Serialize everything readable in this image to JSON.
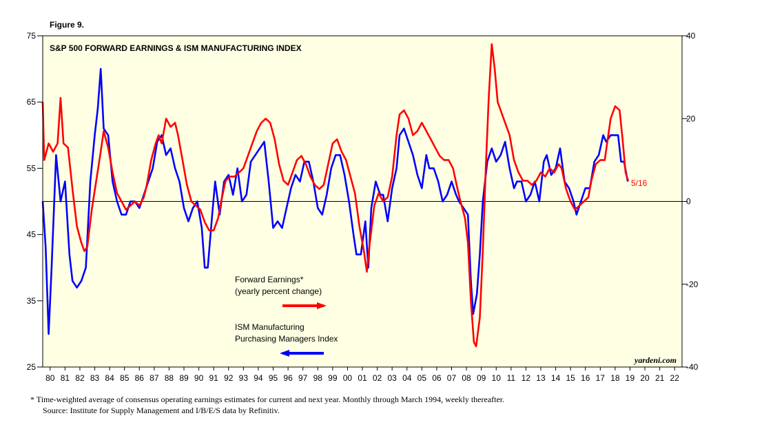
{
  "chart_data": {
    "type": "line",
    "header": "Figure 9.",
    "title": "S&P 500 FORWARD EARNINGS & ISM MANUFACTURING INDEX",
    "source_credit": "yardeni.com",
    "annotation": "5/16",
    "footnotes": [
      "*  Time-weighted average of consensus operating earnings estimates for current and next year. Monthly through March 1994, weekly thereafter.",
      "Source: Institute for Supply Management and I/B/E/S data by Refinitiv."
    ],
    "xlim": [
      1980,
      2023
    ],
    "ylim": [
      25,
      75
    ],
    "yticks": [
      25,
      35,
      45,
      55,
      65,
      75
    ],
    "y2lim": [
      -40,
      40
    ],
    "y2ticks": [
      -40,
      -20,
      0,
      20,
      40
    ],
    "reference_line": {
      "axis": "y2",
      "value": 0
    },
    "xticks": [
      {
        "value": 1980.5,
        "label": "80"
      },
      {
        "value": 1981.5,
        "label": "81"
      },
      {
        "value": 1982.5,
        "label": "82"
      },
      {
        "value": 1983.5,
        "label": "83"
      },
      {
        "value": 1984.5,
        "label": "84"
      },
      {
        "value": 1985.5,
        "label": "85"
      },
      {
        "value": 1986.5,
        "label": "86"
      },
      {
        "value": 1987.5,
        "label": "87"
      },
      {
        "value": 1988.5,
        "label": "88"
      },
      {
        "value": 1989.5,
        "label": "89"
      },
      {
        "value": 1990.5,
        "label": "90"
      },
      {
        "value": 1991.5,
        "label": "91"
      },
      {
        "value": 1992.5,
        "label": "92"
      },
      {
        "value": 1993.5,
        "label": "93"
      },
      {
        "value": 1994.5,
        "label": "94"
      },
      {
        "value": 1995.5,
        "label": "95"
      },
      {
        "value": 1996.5,
        "label": "96"
      },
      {
        "value": 1997.5,
        "label": "97"
      },
      {
        "value": 1998.5,
        "label": "98"
      },
      {
        "value": 1999.5,
        "label": "99"
      },
      {
        "value": 2000.5,
        "label": "00"
      },
      {
        "value": 2001.5,
        "label": "01"
      },
      {
        "value": 2002.5,
        "label": "02"
      },
      {
        "value": 2003.5,
        "label": "03"
      },
      {
        "value": 2004.5,
        "label": "04"
      },
      {
        "value": 2005.5,
        "label": "05"
      },
      {
        "value": 2006.5,
        "label": "06"
      },
      {
        "value": 2007.5,
        "label": "07"
      },
      {
        "value": 2008.5,
        "label": "08"
      },
      {
        "value": 2009.5,
        "label": "09"
      },
      {
        "value": 2010.5,
        "label": "10"
      },
      {
        "value": 2011.5,
        "label": "11"
      },
      {
        "value": 2012.5,
        "label": "12"
      },
      {
        "value": 2013.5,
        "label": "13"
      },
      {
        "value": 2014.5,
        "label": "14"
      },
      {
        "value": 2015.5,
        "label": "15"
      },
      {
        "value": 2016.5,
        "label": "16"
      },
      {
        "value": 2017.5,
        "label": "17"
      },
      {
        "value": 2018.5,
        "label": "18"
      },
      {
        "value": 2019.5,
        "label": "19"
      },
      {
        "value": 2020.5,
        "label": "20"
      },
      {
        "value": 2021.5,
        "label": "21"
      },
      {
        "value": 2022.5,
        "label": "22"
      }
    ],
    "series": [
      {
        "name": [
          "Forward Earnings*",
          "(yearly percent change)"
        ],
        "color": "#ff0000",
        "axis": "y2",
        "x": [
          1980.0,
          1980.1,
          1980.4,
          1980.7,
          1981.0,
          1981.2,
          1981.4,
          1981.7,
          1982.0,
          1982.3,
          1982.6,
          1982.8,
          1983.0,
          1983.3,
          1983.6,
          1983.9,
          1984.1,
          1984.4,
          1984.7,
          1985.0,
          1985.3,
          1985.6,
          1985.9,
          1986.2,
          1986.5,
          1986.8,
          1987.0,
          1987.3,
          1987.6,
          1987.8,
          1988.0,
          1988.3,
          1988.6,
          1988.9,
          1989.1,
          1989.4,
          1989.7,
          1990.0,
          1990.3,
          1990.6,
          1990.9,
          1991.2,
          1991.5,
          1991.8,
          1992.0,
          1992.3,
          1992.6,
          1992.9,
          1993.2,
          1993.5,
          1993.8,
          1994.1,
          1994.4,
          1994.7,
          1995.0,
          1995.3,
          1995.6,
          1995.9,
          1996.2,
          1996.5,
          1996.8,
          1997.1,
          1997.4,
          1997.7,
          1998.0,
          1998.3,
          1998.6,
          1998.9,
          1999.2,
          1999.5,
          1999.8,
          2000.1,
          2000.4,
          2000.7,
          2001.0,
          2001.3,
          2001.6,
          2001.8,
          2002.0,
          2002.3,
          2002.6,
          2002.9,
          2003.2,
          2003.5,
          2003.8,
          2004.0,
          2004.3,
          2004.6,
          2004.9,
          2005.2,
          2005.5,
          2005.8,
          2006.1,
          2006.4,
          2006.7,
          2007.0,
          2007.3,
          2007.6,
          2007.9,
          2008.1,
          2008.4,
          2008.6,
          2008.8,
          2009.0,
          2009.15,
          2009.4,
          2009.6,
          2009.8,
          2010.0,
          2010.2,
          2010.4,
          2010.6,
          2010.8,
          2011.1,
          2011.4,
          2011.7,
          2012.0,
          2012.3,
          2012.6,
          2012.9,
          2013.2,
          2013.5,
          2013.8,
          2014.1,
          2014.4,
          2014.7,
          2014.9,
          2015.2,
          2015.5,
          2015.8,
          2016.1,
          2016.4,
          2016.7,
          2016.9,
          2017.2,
          2017.5,
          2017.8,
          2018.0,
          2018.2,
          2018.5,
          2018.8,
          2019.0,
          2019.2,
          2019.38
        ],
        "values": [
          24,
          10,
          14,
          12,
          14,
          25,
          14,
          13,
          3,
          -6,
          -10,
          -12,
          -11,
          -2,
          5,
          12,
          17,
          13,
          7,
          2,
          0,
          -2,
          -1,
          0,
          -1,
          1,
          4,
          10,
          14,
          16,
          14,
          20,
          18,
          19,
          16,
          10,
          4,
          0,
          -1,
          -2,
          -5,
          -7,
          -7,
          -4,
          0,
          5,
          6,
          6,
          7,
          8,
          11,
          14,
          17,
          19,
          20,
          19,
          15,
          9,
          5,
          4,
          7,
          10,
          11,
          9,
          6,
          4,
          3,
          4,
          9,
          14,
          15,
          12,
          10,
          6,
          2,
          -6,
          -12,
          -17,
          -10,
          -1,
          2,
          0,
          1,
          6,
          16,
          21,
          22,
          20,
          16,
          17,
          19,
          17,
          15,
          13,
          11,
          10,
          10,
          8,
          3,
          0,
          -4,
          -10,
          -24,
          -34,
          -35,
          -28,
          -12,
          8,
          25,
          38,
          32,
          24,
          22,
          19,
          16,
          10,
          7,
          5,
          5,
          4,
          5,
          7,
          6,
          8,
          7,
          9,
          8,
          3,
          0,
          -2,
          -1,
          0,
          1,
          5,
          9,
          10,
          10,
          15,
          20,
          23,
          22,
          15,
          7,
          5
        ]
      },
      {
        "name": [
          "ISM Manufacturing",
          "Purchasing Managers Index"
        ],
        "color": "#0000ff",
        "x": [
          1980.0,
          1980.2,
          1980.4,
          1980.6,
          1980.9,
          1981.2,
          1981.5,
          1981.8,
          1982.0,
          1982.3,
          1982.6,
          1982.9,
          1983.2,
          1983.5,
          1983.7,
          1983.9,
          1984.1,
          1984.4,
          1984.7,
          1985.0,
          1985.3,
          1985.6,
          1985.9,
          1986.2,
          1986.5,
          1986.8,
          1987.1,
          1987.4,
          1987.7,
          1988.0,
          1988.3,
          1988.6,
          1988.9,
          1989.2,
          1989.5,
          1989.8,
          1990.1,
          1990.4,
          1990.7,
          1990.9,
          1991.1,
          1991.4,
          1991.6,
          1991.9,
          1992.2,
          1992.5,
          1992.8,
          1993.1,
          1993.4,
          1993.7,
          1994.0,
          1994.3,
          1994.6,
          1994.9,
          1995.2,
          1995.5,
          1995.8,
          1996.1,
          1996.4,
          1996.7,
          1997.0,
          1997.3,
          1997.6,
          1997.9,
          1998.2,
          1998.5,
          1998.8,
          1999.1,
          1999.4,
          1999.7,
          2000.0,
          2000.3,
          2000.6,
          2000.9,
          2001.1,
          2001.4,
          2001.7,
          2001.9,
          2002.1,
          2002.4,
          2002.7,
          2002.9,
          2003.2,
          2003.5,
          2003.8,
          2004.0,
          2004.3,
          2004.6,
          2004.9,
          2005.2,
          2005.5,
          2005.8,
          2006.0,
          2006.3,
          2006.6,
          2006.9,
          2007.2,
          2007.5,
          2007.8,
          2008.0,
          2008.3,
          2008.6,
          2008.8,
          2008.95,
          2009.2,
          2009.4,
          2009.6,
          2009.9,
          2010.2,
          2010.5,
          2010.8,
          2011.1,
          2011.4,
          2011.7,
          2011.9,
          2012.2,
          2012.5,
          2012.8,
          2013.1,
          2013.4,
          2013.7,
          2013.9,
          2014.2,
          2014.5,
          2014.8,
          2015.1,
          2015.4,
          2015.7,
          2015.9,
          2016.2,
          2016.5,
          2016.8,
          2017.1,
          2017.4,
          2017.7,
          2017.9,
          2018.2,
          2018.5,
          2018.7,
          2018.9,
          2019.1,
          2019.35
        ],
        "values": [
          50,
          43,
          30,
          40,
          57,
          50,
          53,
          42,
          38,
          37,
          38,
          40,
          53,
          60,
          64,
          70,
          61,
          60,
          53,
          50,
          48,
          48,
          50,
          50,
          49,
          51,
          53,
          55,
          59,
          60,
          57,
          58,
          55,
          53,
          49,
          47,
          49,
          50,
          46,
          40,
          40,
          48,
          53,
          48,
          53,
          54,
          51,
          55,
          50,
          51,
          56,
          57,
          58,
          59,
          53,
          46,
          47,
          46,
          49,
          52,
          54,
          53,
          56,
          56,
          53,
          49,
          48,
          51,
          55,
          57,
          57,
          54,
          50,
          45,
          42,
          42,
          47,
          40,
          49,
          53,
          51,
          51,
          47,
          52,
          55,
          60,
          61,
          59,
          57,
          54,
          52,
          57,
          55,
          55,
          53,
          50,
          51,
          53,
          51,
          50,
          49,
          48,
          38,
          33,
          36,
          42,
          50,
          56,
          58,
          56,
          57,
          59,
          55,
          52,
          53,
          53,
          50,
          51,
          53,
          50,
          56,
          57,
          54,
          55,
          58,
          53,
          52,
          50,
          48,
          50,
          52,
          52,
          56,
          57,
          60,
          59,
          60,
          60,
          60,
          56,
          56,
          53
        ]
      }
    ]
  }
}
